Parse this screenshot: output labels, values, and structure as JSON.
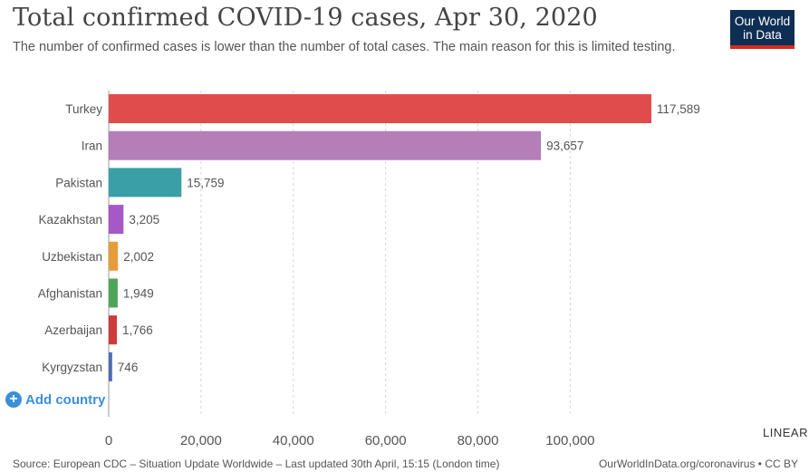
{
  "header": {
    "title": "Total confirmed COVID-19 cases, Apr 30, 2020",
    "subtitle": "The number of confirmed cases is lower than the number of total cases. The main reason for this is limited testing.",
    "logo_line1": "Our World",
    "logo_line2": "in Data"
  },
  "controls": {
    "add_country": "Add country",
    "scale": "LINEAR"
  },
  "footer": {
    "source": "Source: European CDC – Situation Update Worldwide – Last updated 30th April, 15:15 (London time)",
    "credit": "OurWorldInData.org/coronavirus • CC BY"
  },
  "colors": {
    "logo_bg": "#0f2e53",
    "logo_accent": "#d42b21",
    "link": "#3a8fd9"
  },
  "chart_data": {
    "type": "bar",
    "orientation": "horizontal",
    "categories": [
      "Turkey",
      "Iran",
      "Pakistan",
      "Kazakhstan",
      "Uzbekistan",
      "Afghanistan",
      "Azerbaijan",
      "Kyrgyzstan"
    ],
    "values": [
      117589,
      93657,
      15759,
      3205,
      2002,
      1949,
      1766,
      746
    ],
    "value_labels": [
      "117,589",
      "93,657",
      "15,759",
      "3,205",
      "2,002",
      "1,949",
      "1,766",
      "746"
    ],
    "colors": [
      "#e04c4c",
      "#b47eb8",
      "#3a9fa7",
      "#a558c6",
      "#e59d3a",
      "#4da55a",
      "#cf3a3a",
      "#4e6bb5"
    ],
    "xticks": [
      0,
      20000,
      40000,
      60000,
      80000,
      100000
    ],
    "xtick_labels": [
      "0",
      "20,000",
      "40,000",
      "60,000",
      "80,000",
      "100,000"
    ],
    "xlim": [
      0,
      117589
    ],
    "grid": true
  }
}
